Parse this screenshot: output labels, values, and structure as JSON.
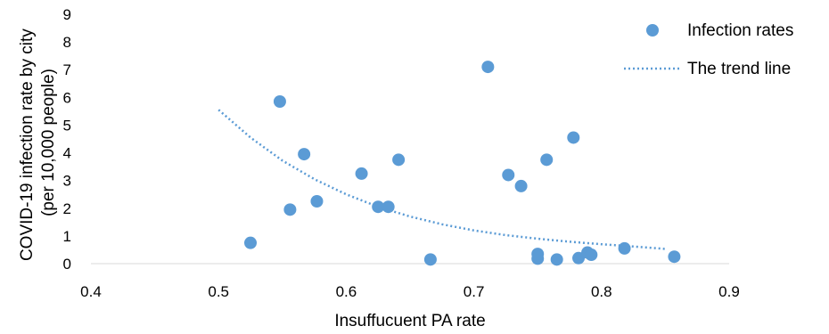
{
  "chart_data": {
    "type": "scatter",
    "xlabel": "Insuffucuent PA rate",
    "ylabel_lines": [
      "COVID-19 infection rate by city",
      "(per 10,000 people)"
    ],
    "xlim": [
      0.4,
      0.9
    ],
    "ylim": [
      0,
      9
    ],
    "x_ticks": [
      "0.4",
      "0.5",
      "0.6",
      "0.7",
      "0.8",
      "0.9"
    ],
    "y_ticks": [
      "0",
      "1",
      "2",
      "3",
      "4",
      "5",
      "6",
      "7",
      "8",
      "9"
    ],
    "grid": false,
    "legend_position": "top-right",
    "series": [
      {
        "name": "Infection rates",
        "color": "#5b9bd5",
        "points": [
          {
            "x": 0.525,
            "y": 0.75
          },
          {
            "x": 0.548,
            "y": 5.85
          },
          {
            "x": 0.556,
            "y": 1.95
          },
          {
            "x": 0.567,
            "y": 3.95
          },
          {
            "x": 0.577,
            "y": 2.25
          },
          {
            "x": 0.612,
            "y": 3.25
          },
          {
            "x": 0.625,
            "y": 2.05
          },
          {
            "x": 0.633,
            "y": 2.05
          },
          {
            "x": 0.641,
            "y": 3.75
          },
          {
            "x": 0.666,
            "y": 0.15
          },
          {
            "x": 0.711,
            "y": 7.1
          },
          {
            "x": 0.727,
            "y": 3.2
          },
          {
            "x": 0.737,
            "y": 2.8
          },
          {
            "x": 0.75,
            "y": 0.35
          },
          {
            "x": 0.75,
            "y": 0.18
          },
          {
            "x": 0.757,
            "y": 3.75
          },
          {
            "x": 0.765,
            "y": 0.15
          },
          {
            "x": 0.778,
            "y": 4.55
          },
          {
            "x": 0.782,
            "y": 0.2
          },
          {
            "x": 0.789,
            "y": 0.4
          },
          {
            "x": 0.792,
            "y": 0.32
          },
          {
            "x": 0.818,
            "y": 0.55
          },
          {
            "x": 0.857,
            "y": 0.25
          }
        ]
      },
      {
        "name": "The trend line",
        "color": "#5b9bd5",
        "line_style": "dotted",
        "points": [
          {
            "x": 0.5,
            "y": 5.55
          },
          {
            "x": 0.525,
            "y": 4.55
          },
          {
            "x": 0.55,
            "y": 3.72
          },
          {
            "x": 0.575,
            "y": 3.05
          },
          {
            "x": 0.6,
            "y": 2.5
          },
          {
            "x": 0.625,
            "y": 2.05
          },
          {
            "x": 0.65,
            "y": 1.7
          },
          {
            "x": 0.675,
            "y": 1.42
          },
          {
            "x": 0.7,
            "y": 1.2
          },
          {
            "x": 0.725,
            "y": 1.03
          },
          {
            "x": 0.75,
            "y": 0.9
          },
          {
            "x": 0.775,
            "y": 0.79
          },
          {
            "x": 0.8,
            "y": 0.7
          },
          {
            "x": 0.825,
            "y": 0.62
          },
          {
            "x": 0.85,
            "y": 0.53
          }
        ]
      }
    ]
  }
}
